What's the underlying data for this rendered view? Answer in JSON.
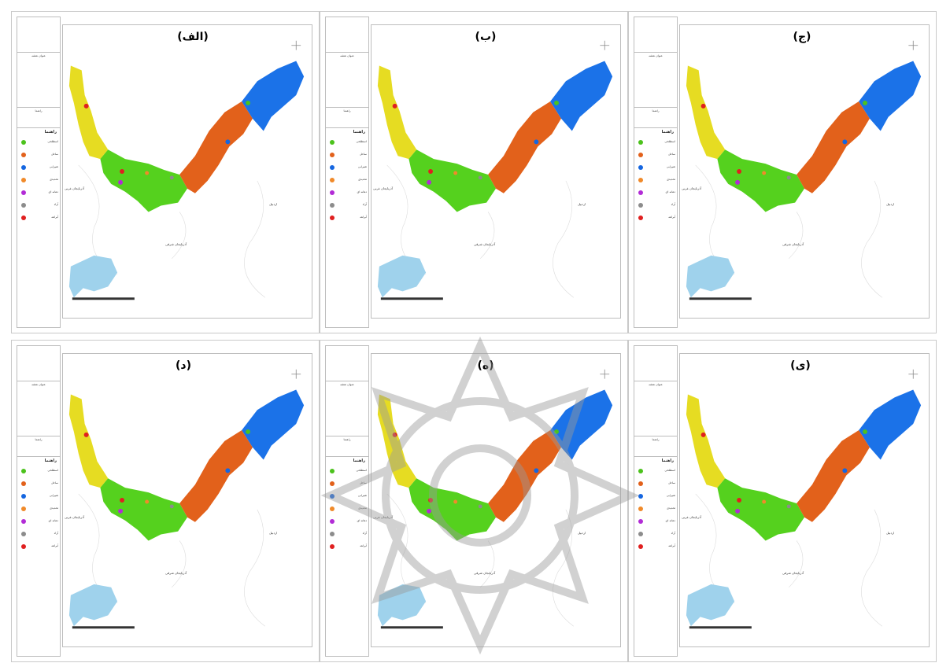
{
  "panels": [
    {
      "label": "(الف)",
      "legend": {
        "map_info": "عنوان نقشه",
        "map_note": "راهنما",
        "title": "راهنما",
        "items": [
          {
            "label": "اسطلخی",
            "color": "#4cc21c"
          },
          {
            "label": "ساحل",
            "color": "#e2611b"
          },
          {
            "label": "شیرابی",
            "color": "#1566e0"
          },
          {
            "label": "تحدیدی",
            "color": "#f08a2a"
          },
          {
            "label": "دهانه ای",
            "color": "#b22cd6"
          },
          {
            "label": "آزاد",
            "color": "#8c8c8c"
          },
          {
            "label": "آبراهه",
            "color": "#e02020"
          }
        ]
      },
      "place_labels": {
        "west": "آذربایجان غربی",
        "south": "آذربایجان شرقی",
        "east": "اردبیل"
      }
    },
    {
      "label": "(ب)",
      "legend": {
        "map_info": "عنوان نقشه",
        "map_note": "راهنما",
        "title": "راهنما",
        "items": [
          {
            "label": "اسطلخی",
            "color": "#4cc21c"
          },
          {
            "label": "ساحل",
            "color": "#e2611b"
          },
          {
            "label": "شیرابی",
            "color": "#1566e0"
          },
          {
            "label": "تحدیدی",
            "color": "#f08a2a"
          },
          {
            "label": "دهانه ای",
            "color": "#b22cd6"
          },
          {
            "label": "آزاد",
            "color": "#8c8c8c"
          },
          {
            "label": "آبراهه",
            "color": "#e02020"
          }
        ]
      },
      "place_labels": {
        "west": "آذربایجان غربی",
        "south": "آذربایجان شرقی",
        "east": "اردبیل"
      }
    },
    {
      "label": "(ج)",
      "legend": {
        "map_info": "عنوان نقشه",
        "map_note": "راهنما",
        "title": "راهنما",
        "items": [
          {
            "label": "اسطلخی",
            "color": "#4cc21c"
          },
          {
            "label": "ساحل",
            "color": "#e2611b"
          },
          {
            "label": "شیرابی",
            "color": "#1566e0"
          },
          {
            "label": "تحدیدی",
            "color": "#f08a2a"
          },
          {
            "label": "دهانه ای",
            "color": "#b22cd6"
          },
          {
            "label": "آزاد",
            "color": "#8c8c8c"
          },
          {
            "label": "آبراهه",
            "color": "#e02020"
          }
        ]
      },
      "place_labels": {
        "west": "آذربایجان غربی",
        "south": "آذربایجان شرقی",
        "east": "اردبیل"
      }
    },
    {
      "label": "(د)",
      "legend": {
        "map_info": "عنوان نقشه",
        "map_note": "راهنما",
        "title": "راهنما",
        "items": [
          {
            "label": "اسطلخی",
            "color": "#4cc21c"
          },
          {
            "label": "ساحل",
            "color": "#e2611b"
          },
          {
            "label": "شیرابی",
            "color": "#1566e0"
          },
          {
            "label": "تحدیدی",
            "color": "#f08a2a"
          },
          {
            "label": "دهانه ای",
            "color": "#b22cd6"
          },
          {
            "label": "آزاد",
            "color": "#8c8c8c"
          },
          {
            "label": "آبراهه",
            "color": "#e02020"
          }
        ]
      },
      "place_labels": {
        "west": "آذربایجان غربی",
        "south": "آذربایجان شرقی",
        "east": "اردبیل"
      }
    },
    {
      "label": "(ه)",
      "legend": {
        "map_info": "عنوان نقشه",
        "map_note": "راهنما",
        "title": "راهنما",
        "items": [
          {
            "label": "اسطلخی",
            "color": "#4cc21c"
          },
          {
            "label": "ساحل",
            "color": "#e2611b"
          },
          {
            "label": "شیرابی",
            "color": "#1566e0"
          },
          {
            "label": "تحدیدی",
            "color": "#f08a2a"
          },
          {
            "label": "دهانه ای",
            "color": "#b22cd6"
          },
          {
            "label": "آزاد",
            "color": "#8c8c8c"
          },
          {
            "label": "آبراهه",
            "color": "#e02020"
          }
        ]
      },
      "place_labels": {
        "west": "آذربایجان غربی",
        "south": "آذربایجان شرقی",
        "east": "اردبیل"
      }
    },
    {
      "label": "(ی)",
      "legend": {
        "map_info": "عنوان نقشه",
        "map_note": "راهنما",
        "title": "راهنما",
        "items": [
          {
            "label": "اسطلخی",
            "color": "#4cc21c"
          },
          {
            "label": "ساحل",
            "color": "#e2611b"
          },
          {
            "label": "شیرابی",
            "color": "#1566e0"
          },
          {
            "label": "تحدیدی",
            "color": "#f08a2a"
          },
          {
            "label": "دهانه ای",
            "color": "#b22cd6"
          },
          {
            "label": "آزاد",
            "color": "#8c8c8c"
          },
          {
            "label": "آبراهه",
            "color": "#e02020"
          }
        ]
      },
      "place_labels": {
        "west": "آذربایجان غربی",
        "south": "آذربایجان شرقی",
        "east": "اردبیل"
      }
    }
  ],
  "colors": {
    "segment_yellow": "#e6dc22",
    "segment_green": "#55d11e",
    "segment_orange": "#e2611b",
    "segment_blue": "#1b72e8",
    "lake_blue": "#9fd2ec",
    "watermark_gray": "#9a9a9a"
  }
}
